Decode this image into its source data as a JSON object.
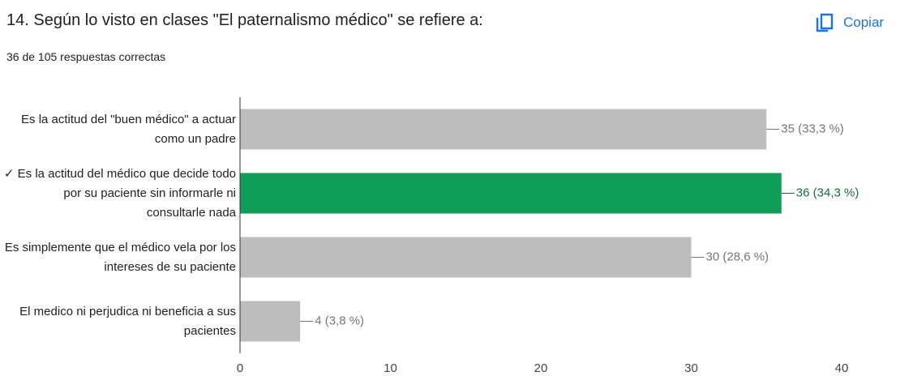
{
  "copy_label": "Copiar",
  "chart_data": {
    "type": "bar",
    "orientation": "horizontal",
    "title": "14. Según lo visto en clases \"El paternalismo médico\" se refiere a:",
    "subtitle": "36 de 105 respuestas correctas",
    "categories": [
      "Es la actitud del \"buen médico\" a actuar como un padre",
      "✓ Es la actitud del médico que decide todo por su paciente sin informarle ni consultarle nada",
      "Es simplemente que el médico vela por los intereses de su paciente",
      "El medico ni perjudica ni beneficia a sus pacientes"
    ],
    "values": [
      35,
      36,
      30,
      4
    ],
    "value_labels": [
      "35 (33,3 %)",
      "36 (34,3 %)",
      "30 (28,6 %)",
      "4 (3,8 %)"
    ],
    "colors": [
      "#bdbdbd",
      "#0f9d58",
      "#bdbdbd",
      "#bdbdbd"
    ],
    "label_colors": [
      "#757575",
      "#137333",
      "#757575",
      "#757575"
    ],
    "xlim": [
      0,
      40
    ],
    "xticks": [
      0,
      10,
      20,
      30,
      40
    ],
    "grid": false
  }
}
